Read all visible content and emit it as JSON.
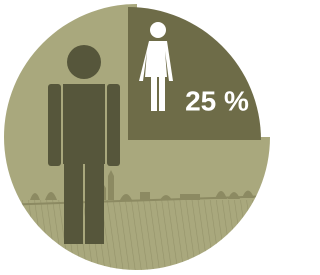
{
  "chart_data": {
    "type": "pie",
    "values": [
      25,
      75
    ],
    "value_labels": [
      "25 %",
      null
    ],
    "colors": [
      "#6e6c48",
      "#a9a87d"
    ]
  }
}
